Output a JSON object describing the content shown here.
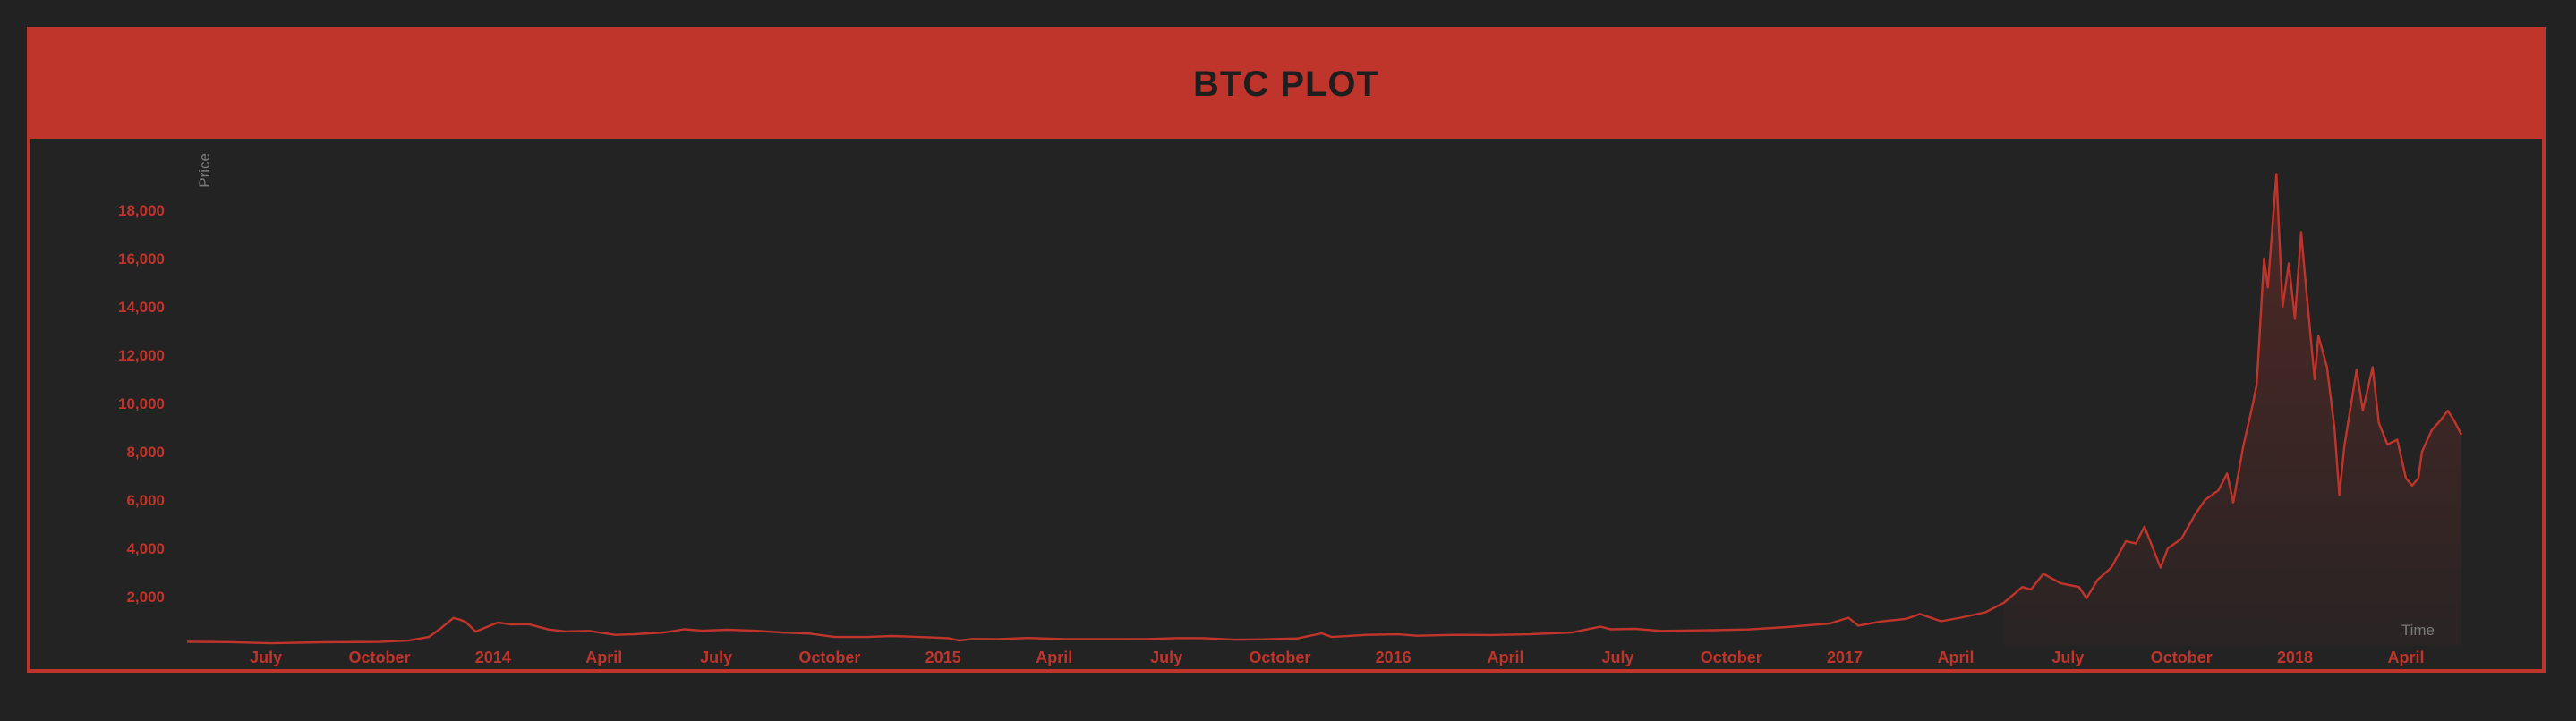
{
  "header": {
    "title": "BTC PLOT"
  },
  "chart_data": {
    "type": "area",
    "title": "BTC PLOT",
    "xlabel": "Time",
    "ylabel": "Price",
    "ylim": [
      0,
      20000
    ],
    "xlim": [
      "2013-04-28",
      "2018-05-16"
    ],
    "grid": false,
    "colors": {
      "line": "#c0352b",
      "fill": "#c0352b",
      "ticks": "#c0352b",
      "axis_label": "#7a7a7a"
    },
    "y_ticks": [
      {
        "value": 2000,
        "label": "2,000"
      },
      {
        "value": 4000,
        "label": "4,000"
      },
      {
        "value": 6000,
        "label": "6,000"
      },
      {
        "value": 8000,
        "label": "8,000"
      },
      {
        "value": 10000,
        "label": "10,000"
      },
      {
        "value": 12000,
        "label": "12,000"
      },
      {
        "value": 14000,
        "label": "14,000"
      },
      {
        "value": 16000,
        "label": "16,000"
      },
      {
        "value": 18000,
        "label": "18,000"
      }
    ],
    "x_ticks": [
      {
        "value": "2013-07-01",
        "label": "July"
      },
      {
        "value": "2013-10-01",
        "label": "October"
      },
      {
        "value": "2014-01-01",
        "label": "2014"
      },
      {
        "value": "2014-04-01",
        "label": "April"
      },
      {
        "value": "2014-07-01",
        "label": "July"
      },
      {
        "value": "2014-10-01",
        "label": "October"
      },
      {
        "value": "2015-01-01",
        "label": "2015"
      },
      {
        "value": "2015-04-01",
        "label": "April"
      },
      {
        "value": "2015-07-01",
        "label": "July"
      },
      {
        "value": "2015-10-01",
        "label": "October"
      },
      {
        "value": "2016-01-01",
        "label": "2016"
      },
      {
        "value": "2016-04-01",
        "label": "April"
      },
      {
        "value": "2016-07-01",
        "label": "July"
      },
      {
        "value": "2016-10-01",
        "label": "October"
      },
      {
        "value": "2017-01-01",
        "label": "2017"
      },
      {
        "value": "2017-04-01",
        "label": "April"
      },
      {
        "value": "2017-07-01",
        "label": "July"
      },
      {
        "value": "2017-10-01",
        "label": "October"
      },
      {
        "value": "2018-01-01",
        "label": "2018"
      },
      {
        "value": "2018-04-01",
        "label": "April"
      }
    ],
    "series": [
      {
        "points": [
          [
            "2013-04-28",
            135
          ],
          [
            "2013-06-01",
            120
          ],
          [
            "2013-07-05",
            70
          ],
          [
            "2013-08-15",
            110
          ],
          [
            "2013-10-01",
            125
          ],
          [
            "2013-10-25",
            190
          ],
          [
            "2013-11-10",
            330
          ],
          [
            "2013-11-20",
            700
          ],
          [
            "2013-11-30",
            1120
          ],
          [
            "2013-12-05",
            1050
          ],
          [
            "2013-12-10",
            950
          ],
          [
            "2013-12-18",
            550
          ],
          [
            "2013-12-25",
            700
          ],
          [
            "2014-01-05",
            930
          ],
          [
            "2014-01-15",
            850
          ],
          [
            "2014-01-30",
            860
          ],
          [
            "2014-02-15",
            640
          ],
          [
            "2014-03-01",
            560
          ],
          [
            "2014-03-20",
            580
          ],
          [
            "2014-04-10",
            420
          ],
          [
            "2014-04-25",
            440
          ],
          [
            "2014-05-20",
            520
          ],
          [
            "2014-06-05",
            650
          ],
          [
            "2014-06-20",
            590
          ],
          [
            "2014-07-10",
            630
          ],
          [
            "2014-08-01",
            590
          ],
          [
            "2014-08-25",
            510
          ],
          [
            "2014-09-15",
            470
          ],
          [
            "2014-10-05",
            330
          ],
          [
            "2014-11-01",
            330
          ],
          [
            "2014-11-20",
            370
          ],
          [
            "2014-12-20",
            320
          ],
          [
            "2015-01-05",
            280
          ],
          [
            "2015-01-14",
            180
          ],
          [
            "2015-01-25",
            250
          ],
          [
            "2015-02-15",
            240
          ],
          [
            "2015-03-10",
            290
          ],
          [
            "2015-04-10",
            240
          ],
          [
            "2015-05-20",
            240
          ],
          [
            "2015-06-15",
            245
          ],
          [
            "2015-07-10",
            285
          ],
          [
            "2015-08-01",
            280
          ],
          [
            "2015-08-25",
            220
          ],
          [
            "2015-09-15",
            230
          ],
          [
            "2015-10-15",
            270
          ],
          [
            "2015-11-04",
            480
          ],
          [
            "2015-11-12",
            330
          ],
          [
            "2015-12-10",
            420
          ],
          [
            "2016-01-05",
            440
          ],
          [
            "2016-01-20",
            380
          ],
          [
            "2016-02-20",
            420
          ],
          [
            "2016-03-20",
            410
          ],
          [
            "2016-04-20",
            440
          ],
          [
            "2016-05-25",
            520
          ],
          [
            "2016-06-17",
            760
          ],
          [
            "2016-06-25",
            650
          ],
          [
            "2016-07-15",
            665
          ],
          [
            "2016-08-05",
            580
          ],
          [
            "2016-09-15",
            610
          ],
          [
            "2016-10-15",
            640
          ],
          [
            "2016-11-15",
            740
          ],
          [
            "2016-12-20",
            890
          ],
          [
            "2017-01-04",
            1130
          ],
          [
            "2017-01-12",
            800
          ],
          [
            "2017-01-30",
            970
          ],
          [
            "2017-02-20",
            1080
          ],
          [
            "2017-03-03",
            1280
          ],
          [
            "2017-03-20",
            980
          ],
          [
            "2017-04-05",
            1130
          ],
          [
            "2017-04-25",
            1350
          ],
          [
            "2017-05-10",
            1750
          ],
          [
            "2017-05-25",
            2400
          ],
          [
            "2017-06-01",
            2300
          ],
          [
            "2017-06-11",
            2950
          ],
          [
            "2017-06-25",
            2550
          ],
          [
            "2017-07-10",
            2400
          ],
          [
            "2017-07-16",
            1930
          ],
          [
            "2017-07-25",
            2700
          ],
          [
            "2017-08-05",
            3200
          ],
          [
            "2017-08-17",
            4300
          ],
          [
            "2017-08-25",
            4200
          ],
          [
            "2017-09-01",
            4900
          ],
          [
            "2017-09-14",
            3200
          ],
          [
            "2017-09-20",
            4000
          ],
          [
            "2017-10-01",
            4400
          ],
          [
            "2017-10-12",
            5400
          ],
          [
            "2017-10-20",
            6000
          ],
          [
            "2017-10-31",
            6400
          ],
          [
            "2017-11-07",
            7100
          ],
          [
            "2017-11-12",
            5900
          ],
          [
            "2017-11-20",
            8200
          ],
          [
            "2017-11-28",
            10000
          ],
          [
            "2017-12-01",
            10800
          ],
          [
            "2017-12-07",
            16000
          ],
          [
            "2017-12-10",
            14800
          ],
          [
            "2017-12-17",
            19500
          ],
          [
            "2017-12-22",
            14000
          ],
          [
            "2017-12-27",
            15800
          ],
          [
            "2018-01-01",
            13500
          ],
          [
            "2018-01-06",
            17100
          ],
          [
            "2018-01-10",
            14800
          ],
          [
            "2018-01-17",
            11000
          ],
          [
            "2018-01-20",
            12800
          ],
          [
            "2018-01-27",
            11500
          ],
          [
            "2018-02-02",
            9000
          ],
          [
            "2018-02-06",
            6200
          ],
          [
            "2018-02-10",
            8200
          ],
          [
            "2018-02-20",
            11400
          ],
          [
            "2018-02-25",
            9700
          ],
          [
            "2018-03-05",
            11500
          ],
          [
            "2018-03-10",
            9200
          ],
          [
            "2018-03-17",
            8300
          ],
          [
            "2018-03-25",
            8500
          ],
          [
            "2018-04-01",
            6900
          ],
          [
            "2018-04-06",
            6600
          ],
          [
            "2018-04-11",
            6900
          ],
          [
            "2018-04-14",
            8000
          ],
          [
            "2018-04-22",
            8900
          ],
          [
            "2018-04-29",
            9300
          ],
          [
            "2018-05-05",
            9700
          ],
          [
            "2018-05-10",
            9300
          ],
          [
            "2018-05-16",
            8700
          ]
        ]
      }
    ]
  }
}
